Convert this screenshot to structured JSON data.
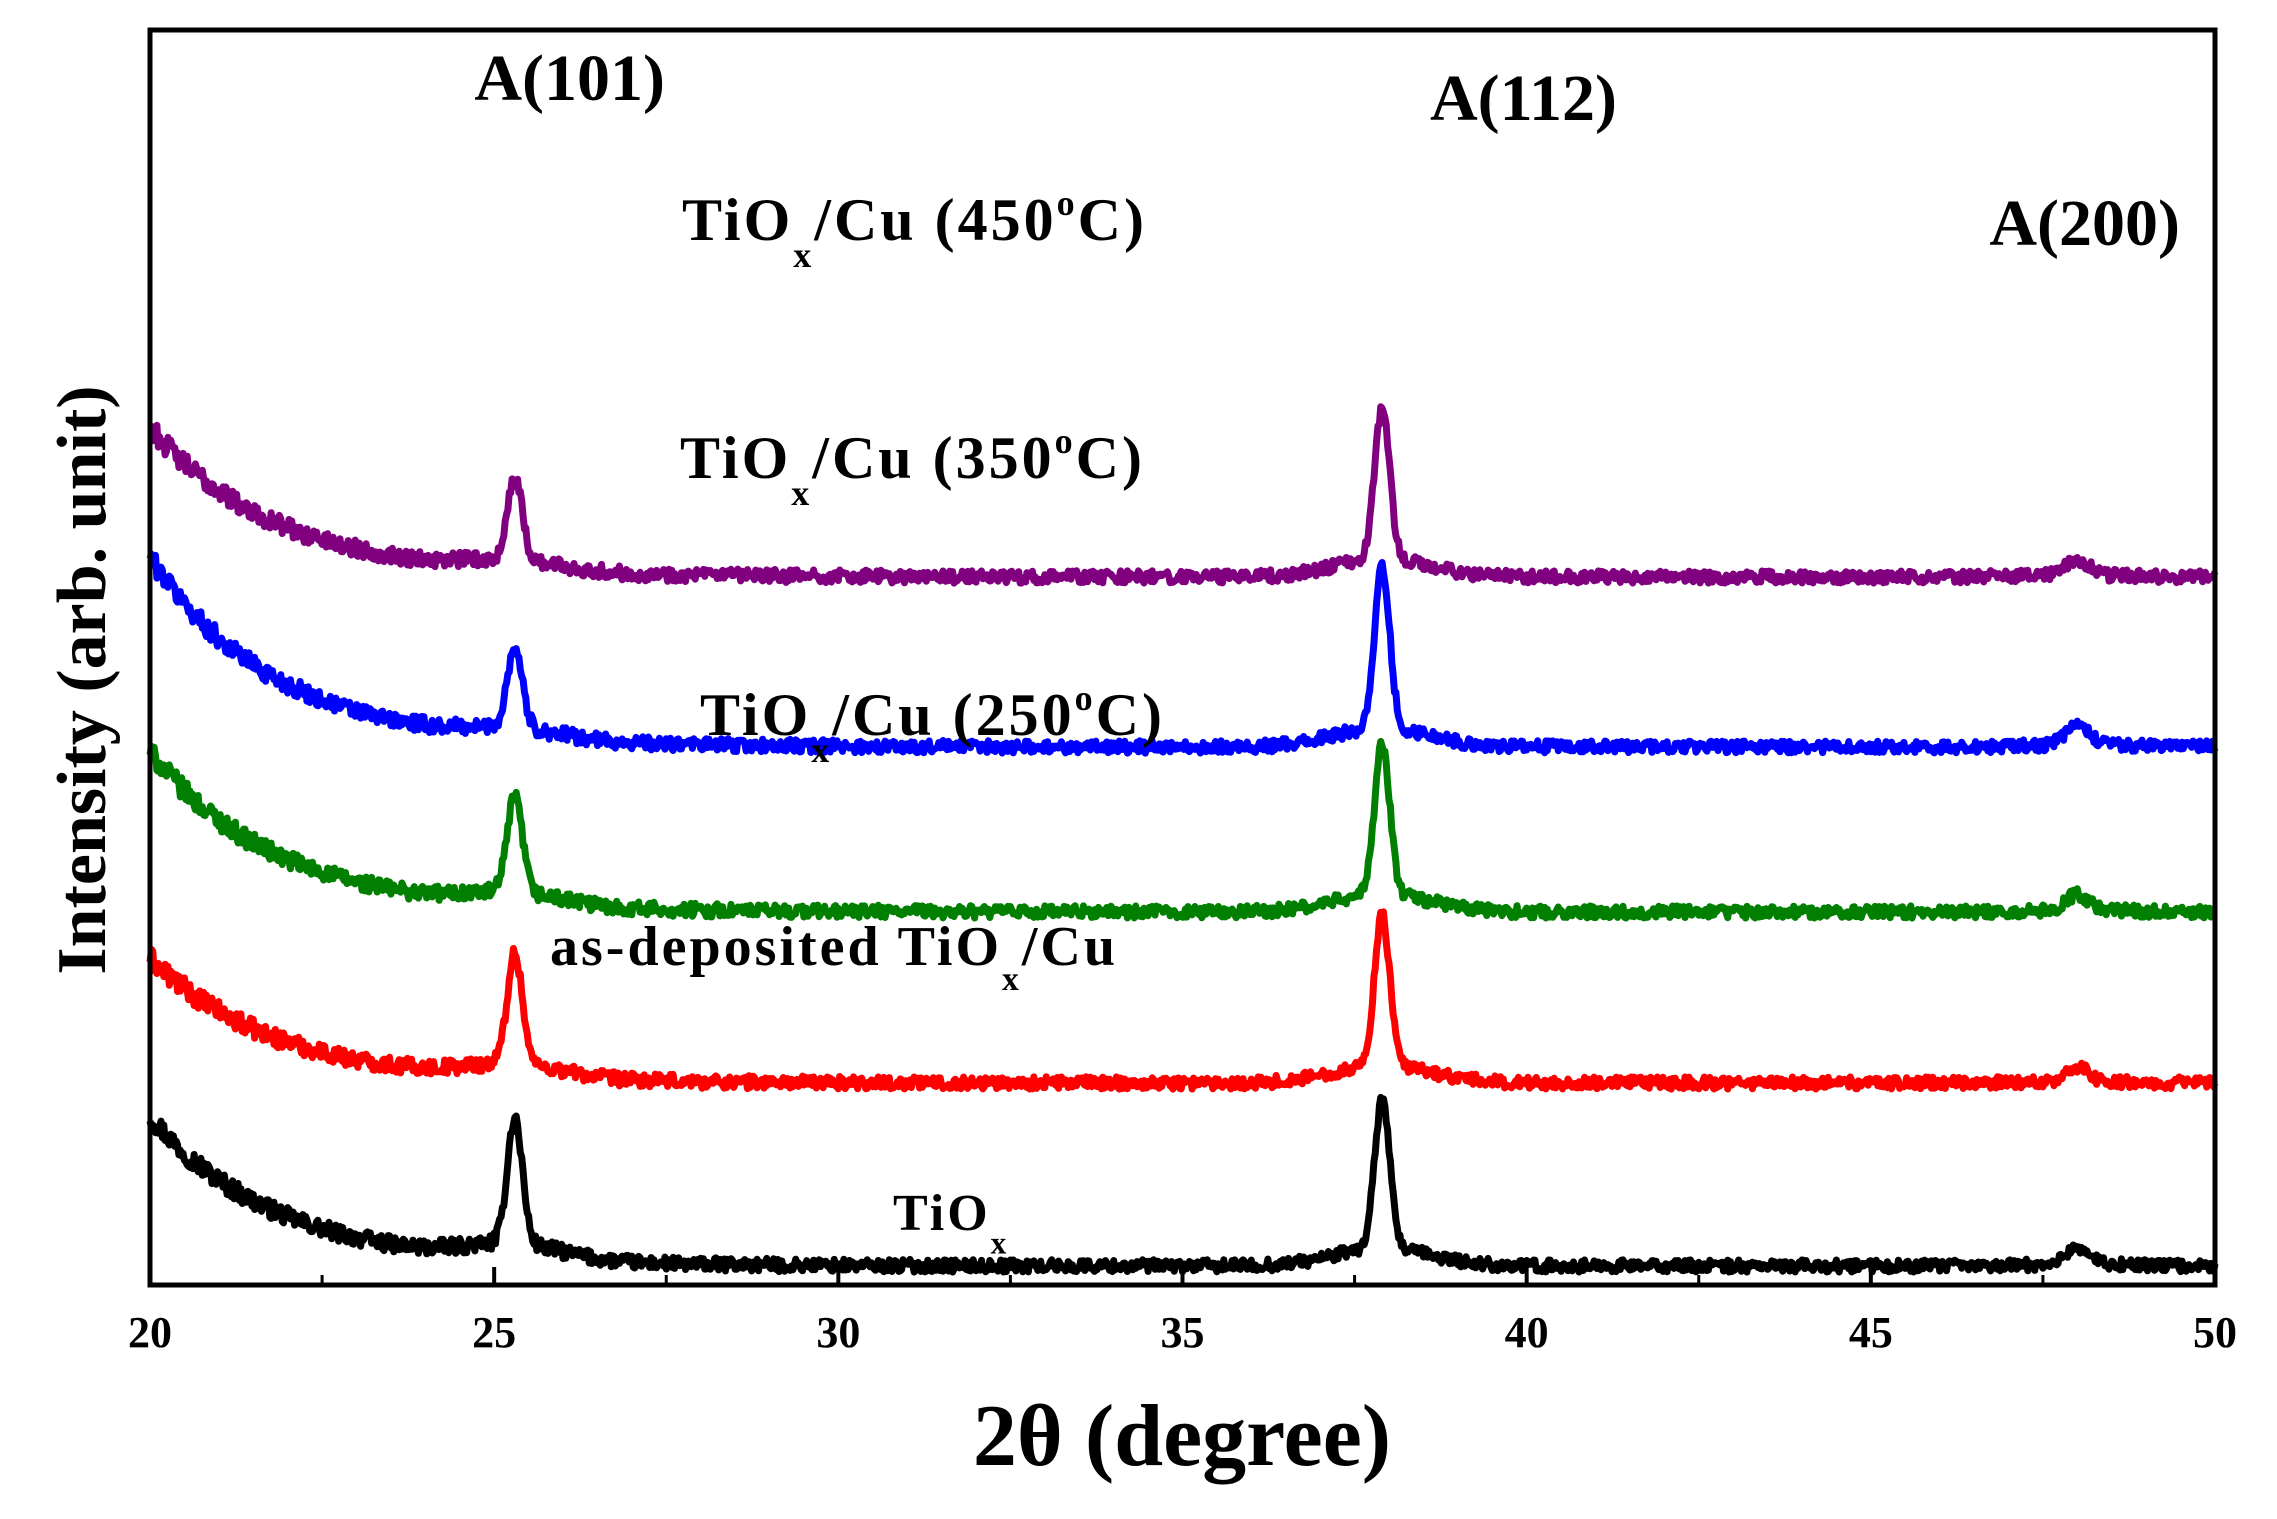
{
  "chart_data": {
    "type": "line",
    "title": "",
    "xlabel": "2θ (degree)",
    "ylabel": "Intensity (arb. unit)",
    "xlim": [
      20,
      50
    ],
    "xticks": [
      20,
      25,
      30,
      35,
      40,
      45,
      50
    ],
    "xtick_labels": [
      "20",
      "25",
      "30",
      "35",
      "40",
      "45",
      "50"
    ],
    "y_ticks_shown": false,
    "peaks": [
      {
        "name": "A(101)",
        "position": 25.3
      },
      {
        "name": "A(112)",
        "position": 37.9
      },
      {
        "name": "A(200)",
        "position": 48.0
      }
    ],
    "series": [
      {
        "name": "TiOx",
        "label_main": "TiO",
        "label_sub": "x",
        "label_suffix": "",
        "color": "#000000",
        "offset": 0,
        "start_intensity": 150,
        "peak_heights": [
          125,
          148,
          17
        ],
        "baseline_end": 4
      },
      {
        "name": "as-deposited TiOx/Cu",
        "label_main": "as-deposited TiO",
        "label_sub": "x",
        "label_suffix": "/Cu",
        "color": "#ff0000",
        "offset": 185,
        "start_intensity": 125,
        "peak_heights": [
          110,
          150,
          14
        ],
        "baseline_end": 2
      },
      {
        "name": "TiOx/Cu (250°C)",
        "label_main": "TiO",
        "label_sub": "x",
        "label_suffix": "/Cu (250",
        "label_sup": "o",
        "label_end": "C)",
        "color": "#007f00",
        "offset": 355,
        "start_intensity": 160,
        "peak_heights": [
          95,
          150,
          16
        ],
        "baseline_end": 3
      },
      {
        "name": "TiOx/Cu (350°C)",
        "label_main": "TiO",
        "label_sub": "x",
        "label_suffix": "/Cu (350",
        "label_sup": "o",
        "label_end": "C)",
        "color": "#0000ff",
        "offset": 520,
        "start_intensity": 190,
        "peak_heights": [
          80,
          160,
          20
        ],
        "baseline_end": 3
      },
      {
        "name": "TiOx/Cu (450°C)",
        "label_main": "TiO",
        "label_sub": "x",
        "label_suffix": "/Cu (450",
        "label_sup": "o",
        "label_end": "C)",
        "color": "#800080",
        "offset": 690,
        "start_intensity": 150,
        "peak_heights": [
          80,
          150,
          16
        ],
        "baseline_end": 3
      }
    ]
  }
}
